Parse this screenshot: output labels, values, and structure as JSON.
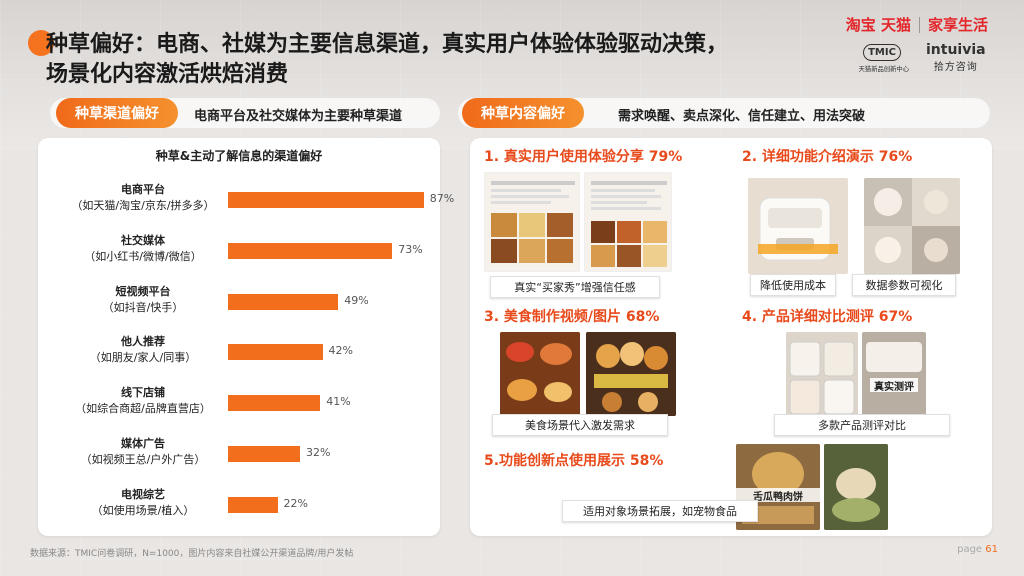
{
  "title": "种草偏好：电商、社媒为主要信息渠道，真实用户体验体验驱动决策，\n场景化内容激活烘焙消费",
  "brand": {
    "taobao_tmall": "淘宝 天猫",
    "jiaxiang": "家享生活",
    "tmic": "TMIC",
    "tmic_sub": "天猫新品创新中心",
    "intuivia_en": "intuivia",
    "intuivia_cn": "拾方咨询"
  },
  "left_pill": {
    "label": "种草渠道偏好",
    "note": "电商平台及社交媒体为主要种草渠道"
  },
  "right_pill": {
    "label": "种草内容偏好",
    "note": "需求唤醒、卖点深化、信任建立、用法突破"
  },
  "chart_data": {
    "type": "bar",
    "title": "种草&主动了解信息的渠道偏好",
    "categories": [
      {
        "name": "电商平台",
        "sub": "（如天猫/淘宝/京东/拼多多）"
      },
      {
        "name": "社交媒体",
        "sub": "（如小红书/微博/微信）"
      },
      {
        "name": "短视频平台",
        "sub": "（如抖音/快手）"
      },
      {
        "name": "他人推荐",
        "sub": "（如朋友/家人/同事）"
      },
      {
        "name": "线下店铺",
        "sub": "（如综合商超/品牌直营店）"
      },
      {
        "name": "媒体广告",
        "sub": "（如视频王总/户外广告）"
      },
      {
        "name": "电视综艺",
        "sub": "（如使用场景/植入）"
      }
    ],
    "values": [
      87,
      73,
      49,
      42,
      41,
      32,
      22
    ],
    "value_labels": [
      "87%",
      "73%",
      "49%",
      "42%",
      "41%",
      "32%",
      "22%"
    ],
    "xlim": [
      0,
      100
    ]
  },
  "sections": {
    "s1": {
      "head": "1. 真实用户使用体验分享  79%",
      "caption": "真实“买家秀”增强信任感"
    },
    "s2": {
      "head": "2. 详细功能介绍演示  76%",
      "caption1": "降低使用成本",
      "caption2": "数据参数可视化"
    },
    "s3": {
      "head": "3. 美食制作视频/图片  68%",
      "caption": "美食场景代入激发需求"
    },
    "s4": {
      "head": "4. 产品详细对比测评  67%",
      "caption": "多款产品测评对比",
      "img_text": "真实测评"
    },
    "s5": {
      "head": "5.功能创新点使用展示  58%",
      "caption": "适用对象场景拓展，如宠物食品",
      "img_text": "舌瓜鸭肉饼"
    }
  },
  "footer": "数据来源：TMIC问卷调研，N=1000，图片内容来自社媒公开渠道品牌/用户发帖",
  "page": {
    "prefix": "page",
    "num": "61"
  },
  "colors": {
    "accent": "#f26d1c",
    "title_red": "#e84a1b",
    "brand_red": "#e4262a"
  }
}
